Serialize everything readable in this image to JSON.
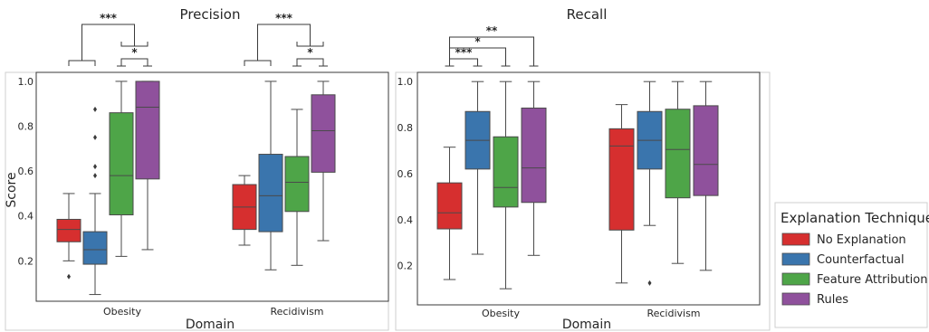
{
  "chart_data": [
    {
      "type": "box",
      "title": "Precision",
      "xlabel": "Domain",
      "ylabel": "Score",
      "categories": [
        "Obesity",
        "Recidivism"
      ],
      "ylim": [
        0.02,
        1.04
      ],
      "yticks": [
        0.2,
        0.4,
        0.6,
        0.8,
        1.0
      ],
      "tick_labels": [
        "0.2",
        "0.4",
        "0.6",
        "0.8",
        "1.0"
      ],
      "grid": false,
      "series": [
        {
          "name": "No Explanation",
          "boxes": [
            {
              "whislo": 0.2,
              "q1": 0.285,
              "med": 0.34,
              "q3": 0.385,
              "whishi": 0.5,
              "fliers": [
                0.13
              ]
            },
            {
              "whislo": 0.27,
              "q1": 0.34,
              "med": 0.44,
              "q3": 0.54,
              "whishi": 0.58,
              "fliers": []
            }
          ]
        },
        {
          "name": "Counterfactual",
          "boxes": [
            {
              "whislo": 0.05,
              "q1": 0.185,
              "med": 0.25,
              "q3": 0.33,
              "whishi": 0.5,
              "fliers": [
                0.58,
                0.62,
                0.75,
                0.875
              ]
            },
            {
              "whislo": 0.16,
              "q1": 0.33,
              "med": 0.49,
              "q3": 0.675,
              "whishi": 1.0,
              "fliers": []
            }
          ]
        },
        {
          "name": "Feature Attribution",
          "boxes": [
            {
              "whislo": 0.22,
              "q1": 0.405,
              "med": 0.58,
              "q3": 0.86,
              "whishi": 1.0,
              "fliers": []
            },
            {
              "whislo": 0.18,
              "q1": 0.42,
              "med": 0.55,
              "q3": 0.665,
              "whishi": 0.875,
              "fliers": []
            }
          ]
        },
        {
          "name": "Rules",
          "boxes": [
            {
              "whislo": 0.25,
              "q1": 0.565,
              "med": 0.885,
              "q3": 1.0,
              "whishi": 1.0,
              "fliers": []
            },
            {
              "whislo": 0.29,
              "q1": 0.595,
              "med": 0.78,
              "q3": 0.94,
              "whishi": 1.0,
              "fliers": []
            }
          ]
        }
      ],
      "annotations": [
        {
          "category": "Obesity",
          "between": [
            "No Explanation",
            "Rules"
          ],
          "label": "***",
          "span": [
            "No Explanation|Counterfactual",
            "Feature Attribution|Rules"
          ],
          "level": 3
        },
        {
          "category": "Obesity",
          "between": [
            "Feature Attribution",
            "Rules"
          ],
          "label": "*",
          "level": 1
        },
        {
          "category": "Recidivism",
          "between": [
            "No Explanation",
            "Rules"
          ],
          "label": "***",
          "span": [
            "No Explanation|Counterfactual",
            "Feature Attribution|Rules"
          ],
          "level": 3
        },
        {
          "category": "Recidivism",
          "between": [
            "Feature Attribution",
            "Rules"
          ],
          "label": "*",
          "level": 1
        }
      ]
    },
    {
      "type": "box",
      "title": "Recall",
      "xlabel": "Domain",
      "ylabel": "",
      "categories": [
        "Obesity",
        "Recidivism"
      ],
      "ylim": [
        0.03,
        1.04
      ],
      "yticks": [
        0.2,
        0.4,
        0.6,
        0.8,
        1.0
      ],
      "tick_labels": [
        "0.2",
        "0.4",
        "0.6",
        "0.8",
        "1.0"
      ],
      "grid": false,
      "series": [
        {
          "name": "No Explanation",
          "boxes": [
            {
              "whislo": 0.14,
              "q1": 0.36,
              "med": 0.43,
              "q3": 0.56,
              "whishi": 0.715,
              "fliers": []
            },
            {
              "whislo": 0.125,
              "q1": 0.355,
              "med": 0.72,
              "q3": 0.795,
              "whishi": 0.9,
              "fliers": []
            }
          ]
        },
        {
          "name": "Counterfactual",
          "boxes": [
            {
              "whislo": 0.25,
              "q1": 0.62,
              "med": 0.745,
              "q3": 0.87,
              "whishi": 1.0,
              "fliers": []
            },
            {
              "whislo": 0.375,
              "q1": 0.62,
              "med": 0.745,
              "q3": 0.87,
              "whishi": 1.0,
              "fliers": [
                0.125
              ]
            }
          ]
        },
        {
          "name": "Feature Attribution",
          "boxes": [
            {
              "whislo": 0.1,
              "q1": 0.455,
              "med": 0.54,
              "q3": 0.76,
              "whishi": 1.0,
              "fliers": []
            },
            {
              "whislo": 0.21,
              "q1": 0.495,
              "med": 0.705,
              "q3": 0.88,
              "whishi": 1.0,
              "fliers": []
            }
          ]
        },
        {
          "name": "Rules",
          "boxes": [
            {
              "whislo": 0.245,
              "q1": 0.475,
              "med": 0.625,
              "q3": 0.885,
              "whishi": 1.0,
              "fliers": []
            },
            {
              "whislo": 0.18,
              "q1": 0.505,
              "med": 0.64,
              "q3": 0.895,
              "whishi": 1.0,
              "fliers": []
            }
          ]
        }
      ],
      "annotations": [
        {
          "category": "Obesity",
          "between": [
            "No Explanation",
            "Counterfactual"
          ],
          "label": "***",
          "level": 1
        },
        {
          "category": "Obesity",
          "between": [
            "No Explanation",
            "Feature Attribution"
          ],
          "label": "*",
          "level": 2
        },
        {
          "category": "Obesity",
          "between": [
            "No Explanation",
            "Rules"
          ],
          "label": "**",
          "level": 3
        }
      ]
    }
  ],
  "legend": {
    "title": "Explanation Technique",
    "placement": "outside-right",
    "items": [
      {
        "label": "No Explanation",
        "color": "#d62f2f"
      },
      {
        "label": "Counterfactual",
        "color": "#3a75ad"
      },
      {
        "label": "Feature Attribution",
        "color": "#4ea548"
      },
      {
        "label": "Rules",
        "color": "#8f519c"
      }
    ]
  }
}
